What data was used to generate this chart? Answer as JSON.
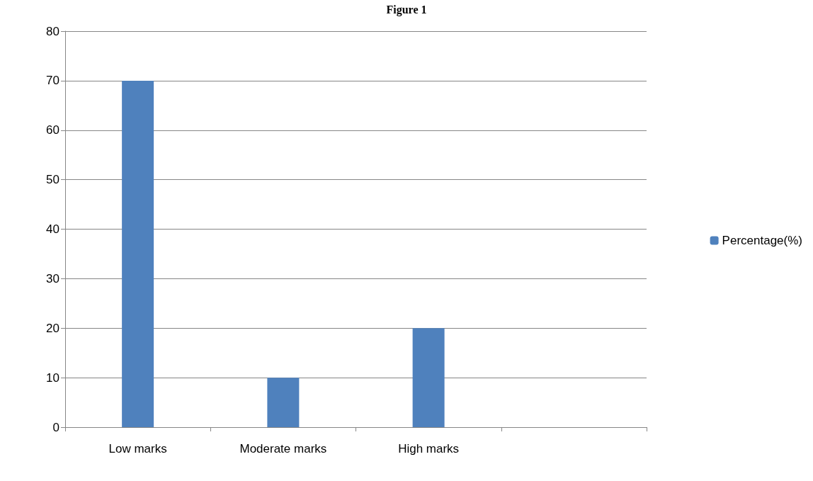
{
  "chart_data": {
    "type": "bar",
    "title": "Figure 1",
    "categories": [
      "Low marks",
      "Moderate marks",
      "High marks",
      null
    ],
    "series": [
      {
        "name": "Percentage(%)",
        "color": "#4f81bd",
        "values": [
          70,
          10,
          20,
          null
        ]
      }
    ],
    "ylim": [
      0,
      80
    ],
    "yticks": [
      0,
      10,
      20,
      30,
      40,
      50,
      60,
      70,
      80
    ],
    "grid": "y",
    "legend": "right"
  }
}
